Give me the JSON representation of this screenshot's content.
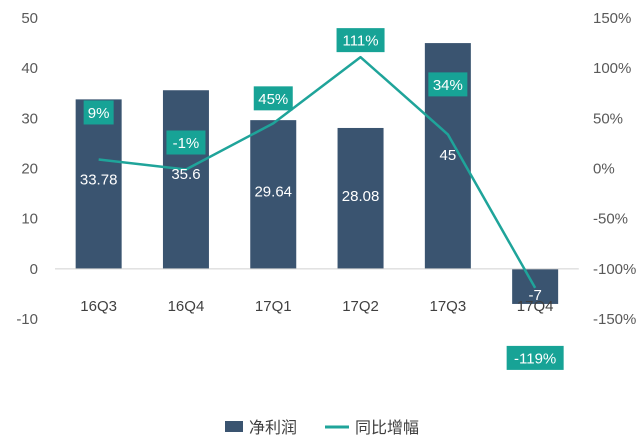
{
  "chart_data": {
    "type": "bar",
    "categories": [
      "16Q3",
      "16Q4",
      "17Q1",
      "17Q2",
      "17Q3",
      "17Q4"
    ],
    "series": [
      {
        "name": "净利润",
        "type": "bar",
        "axis": "left",
        "color": "#3a5470",
        "values": [
          33.78,
          35.6,
          29.64,
          28.08,
          45,
          -7
        ],
        "labels": [
          "33.78",
          "35.6",
          "29.64",
          "28.08",
          "45",
          "-7"
        ]
      },
      {
        "name": "同比增幅",
        "type": "line",
        "axis": "right",
        "color": "#1fa49a",
        "values": [
          9,
          -1,
          45,
          111,
          34,
          -119
        ],
        "labels": [
          "9%",
          "-1%",
          "45%",
          "111%",
          "34%",
          "-119%"
        ]
      }
    ],
    "y_left": {
      "ylim": [
        -10,
        50
      ],
      "ticks": [
        "-10",
        "0",
        "10",
        "20",
        "30",
        "40",
        "50"
      ]
    },
    "y_right": {
      "ylim": [
        -150,
        150
      ],
      "ticks": [
        "-150%",
        "-100%",
        "-50%",
        "0%",
        "50%",
        "100%",
        "150%"
      ]
    },
    "grid": false,
    "legend_position": "bottom",
    "colors": {
      "bar": "#3a5470",
      "line": "#1fa49a",
      "label_box": "#17a396"
    }
  }
}
